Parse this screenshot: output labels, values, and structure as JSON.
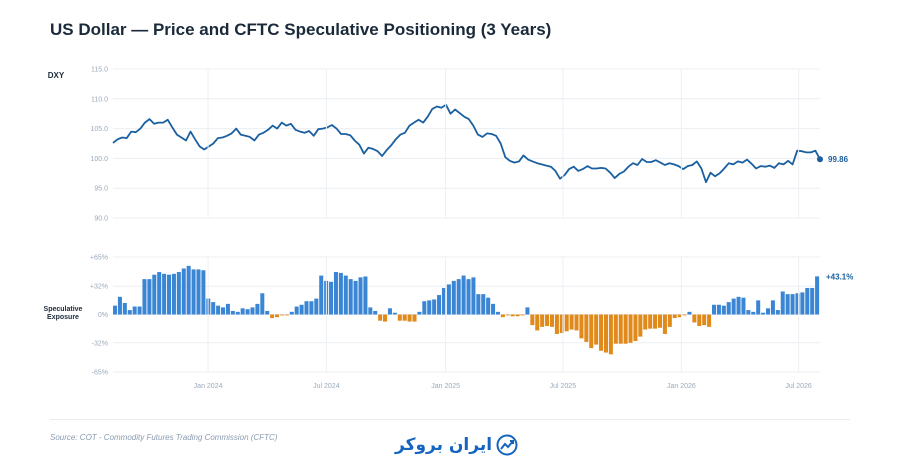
{
  "title": "US Dollar — Price and CFTC Speculative Positioning (3 Years)",
  "source": "Source: COT - Commodity Futures Trading Commission (CFTC)",
  "logo_text": "ایران بروکر",
  "colors": {
    "price_line": "#1a5fa0",
    "positive_bar": "#3a86d4",
    "negative_bar": "#e08a1c",
    "label_blue": "#1a5fa0",
    "grid": "#eceff3",
    "tick_text": "#9aaabb",
    "logo": "#1565c0"
  },
  "chart_data": [
    {
      "type": "line",
      "ylabel": "DXY",
      "ylim": [
        90,
        115
      ],
      "yticks": [
        "115.0",
        "110.0",
        "105.0",
        "100.0",
        "95.0",
        "90.0"
      ],
      "ytick_values": [
        115,
        110,
        105,
        100,
        95,
        90
      ],
      "last_label": "99.86",
      "values": [
        102.6,
        103.2,
        103.5,
        103.4,
        104.5,
        104.4,
        105.0,
        106.0,
        106.6,
        105.8,
        106.0,
        106.0,
        106.5,
        105.2,
        104.0,
        103.5,
        103.0,
        104.5,
        103.2,
        102.0,
        101.5,
        102.0,
        102.5,
        103.4,
        103.5,
        103.8,
        104.2,
        105.0,
        104.0,
        103.8,
        103.6,
        103.0,
        104.0,
        104.3,
        104.8,
        105.5,
        105.0,
        106.0,
        105.5,
        105.8,
        104.8,
        104.5,
        104.3,
        104.6,
        103.8,
        104.9,
        105.0,
        105.2,
        105.6,
        105.0,
        104.1,
        104.1,
        103.9,
        103.0,
        102.3,
        100.8,
        101.8,
        101.6,
        101.2,
        100.4,
        101.4,
        102.2,
        103.2,
        104.0,
        104.3,
        105.5,
        106.0,
        106.5,
        106.0,
        107.0,
        108.3,
        108.7,
        108.5,
        109.0,
        107.5,
        108.2,
        107.6,
        107.0,
        106.6,
        105.5,
        104.0,
        103.6,
        104.2,
        104.1,
        103.8,
        102.5,
        100.2,
        99.6,
        99.3,
        99.5,
        100.5,
        99.8,
        99.5,
        99.2,
        99.0,
        98.8,
        98.6,
        97.9,
        96.6,
        97.2,
        98.2,
        98.6,
        97.9,
        98.2,
        98.7,
        98.3,
        98.3,
        98.4,
        98.3,
        97.6,
        96.7,
        97.4,
        97.8,
        98.6,
        99.2,
        98.9,
        99.9,
        99.4,
        99.4,
        99.7,
        99.3,
        98.9,
        99.2,
        99.0,
        98.7,
        98.2,
        98.7,
        98.9,
        99.5,
        98.3,
        96.0,
        97.6,
        97.0,
        97.5,
        98.3,
        99.2,
        99.0,
        99.5,
        99.3,
        99.8,
        99.1,
        98.3,
        98.7,
        98.6,
        98.8,
        98.4,
        99.2,
        99.0,
        99.6,
        99.0,
        101.3,
        101.2,
        101.0,
        101.0,
        101.3,
        99.86
      ]
    },
    {
      "type": "bar",
      "ylabel": "Speculative Exposure",
      "ylim": [
        -65,
        65
      ],
      "yticks": [
        "+65%",
        "+32%",
        "0%",
        "-32%",
        "-65%"
      ],
      "ytick_values": [
        65,
        32,
        0,
        -32,
        -65
      ],
      "last_label": "+43.1%",
      "values": [
        10,
        20,
        13,
        5,
        9,
        9,
        40,
        40,
        45,
        48,
        46,
        45,
        46,
        48,
        52,
        55,
        51,
        51,
        50,
        18,
        14,
        10,
        8,
        12,
        4,
        3,
        7,
        6,
        8,
        12,
        24,
        4,
        -4,
        -3,
        -1,
        -1,
        3,
        9,
        11,
        15,
        15,
        18,
        44,
        38,
        37,
        48,
        47,
        44,
        40,
        38,
        42,
        43,
        8,
        4,
        -7,
        -8,
        7,
        2,
        -7,
        -7,
        -8,
        -8,
        3,
        15,
        16,
        17,
        22,
        30,
        34,
        38,
        40,
        44,
        40,
        42,
        23,
        23,
        19,
        12,
        3,
        -3,
        -1,
        -2,
        -2,
        -1,
        8,
        -12,
        -18,
        -14,
        -13,
        -14,
        -22,
        -21,
        -19,
        -17,
        -18,
        -27,
        -31,
        -38,
        -34,
        -41,
        -43,
        -45,
        -33,
        -33,
        -33,
        -32,
        -30,
        -25,
        -17,
        -16,
        -16,
        -15,
        -22,
        -14,
        -4,
        -3,
        -1,
        3,
        -9,
        -13,
        -12,
        -14,
        11,
        11,
        10,
        14,
        18,
        20,
        19,
        5,
        3,
        16,
        2,
        7,
        16,
        5,
        26,
        23,
        23,
        24,
        25,
        30,
        30,
        43.1
      ]
    }
  ],
  "xticks": [
    {
      "label": "Jan 2024",
      "pos": 0.1345
    },
    {
      "label": "Jul 2024",
      "pos": 0.3018
    },
    {
      "label": "Jan 2025",
      "pos": 0.4705
    },
    {
      "label": "Jul 2025",
      "pos": 0.6363
    },
    {
      "label": "Jan 2026",
      "pos": 0.804
    },
    {
      "label": "Jul 2026",
      "pos": 0.9697
    }
  ]
}
